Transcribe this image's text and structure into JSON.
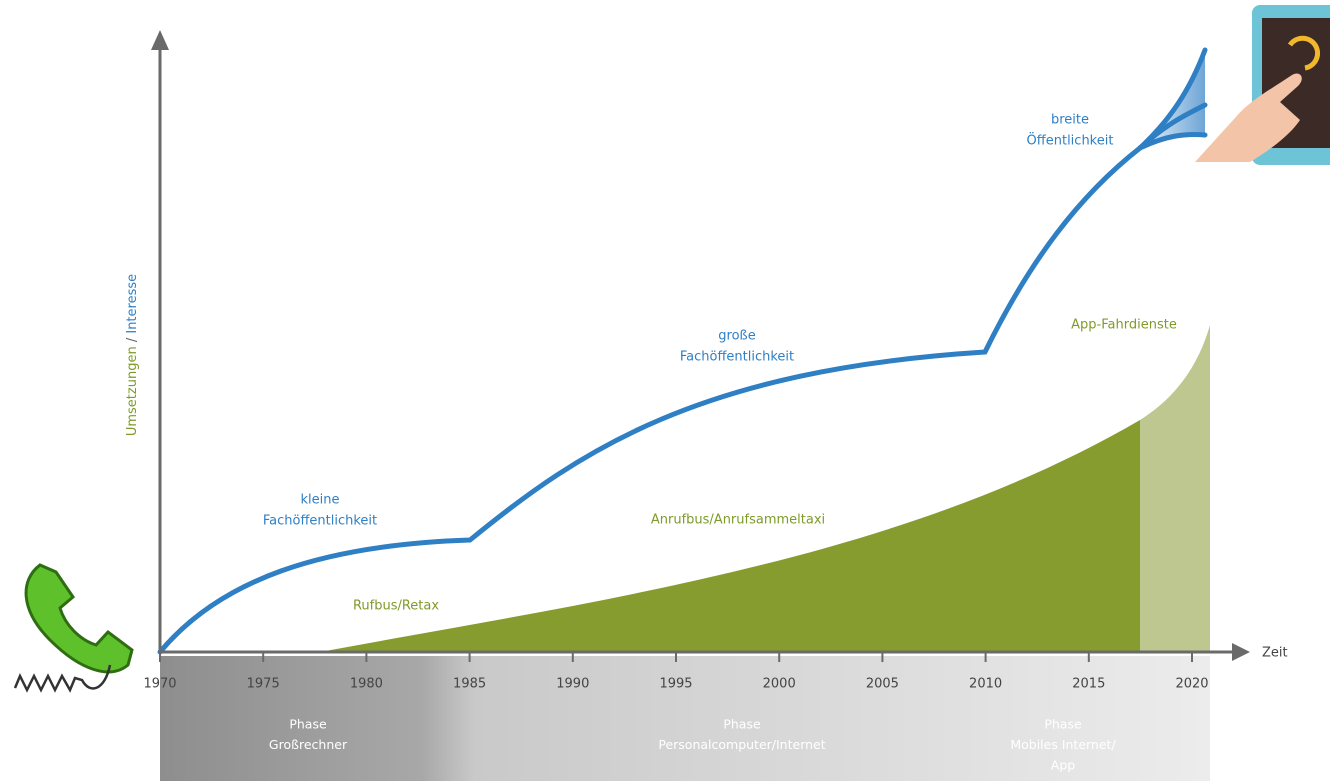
{
  "axis": {
    "y_label": {
      "part1": "Umsetzungen",
      "separator": "/",
      "part2": "Interesse"
    },
    "x_label": "Zeit",
    "x_ticks": [
      1970,
      1975,
      1980,
      1985,
      1990,
      1995,
      2000,
      2005,
      2010,
      2015,
      2020
    ]
  },
  "curve_labels": [
    [
      "kleine",
      "Fachöffentlichkeit"
    ],
    [
      "große",
      "Fachöffentlichkeit"
    ],
    [
      "breite",
      "Öffentlichkeit"
    ]
  ],
  "area_labels": [
    "Rufbus/Retax",
    "Anrufbus/Anrufsammeltaxi",
    "App-Fahrdienste"
  ],
  "phases": [
    [
      "Phase",
      "Großrechner"
    ],
    [
      "Phase",
      "Personalcomputer/Internet"
    ],
    [
      "Phase",
      "Mobiles Internet/",
      "App"
    ]
  ]
}
